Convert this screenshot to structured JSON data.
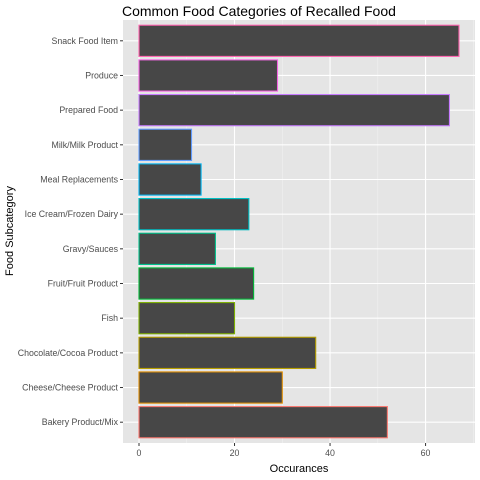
{
  "chart_data": {
    "type": "bar",
    "orientation": "horizontal",
    "title": "Common Food Categories of Recalled Food",
    "xlabel": "Occurances",
    "ylabel": "Food Subcategory",
    "categories": [
      "Bakery Product/Mix",
      "Cheese/Cheese Product",
      "Chocolate/Cocoa Product",
      "Fish",
      "Fruit/Fruit Product",
      "Gravy/Sauces",
      "Ice Cream/Frozen Dairy",
      "Meal Replacements",
      "Milk/Milk Product",
      "Prepared Food",
      "Produce",
      "Snack Food Item"
    ],
    "values": [
      52,
      30,
      37,
      20,
      24,
      16,
      23,
      13,
      11,
      65,
      29,
      67
    ],
    "outline_colors": [
      "#F8766D",
      "#DE8C00",
      "#B79F00",
      "#7CAE00",
      "#00BA38",
      "#00C08B",
      "#00BFC4",
      "#00B4F0",
      "#619CFF",
      "#C77CFF",
      "#F564E3",
      "#FF64B0"
    ],
    "bar_fill": "#474747",
    "panel_background": "#E5E5E5",
    "grid": true,
    "xlim": [
      -3.35,
      70.35
    ],
    "xticks": [
      0,
      20,
      40,
      60
    ],
    "legend": "none"
  }
}
